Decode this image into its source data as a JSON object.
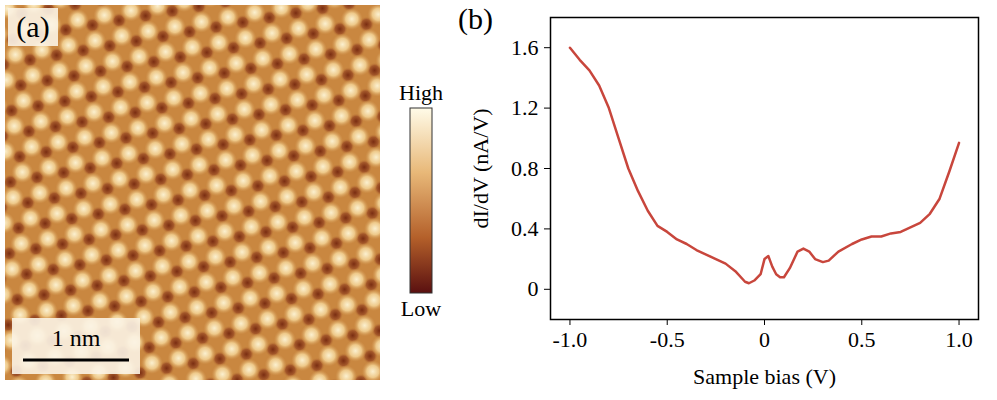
{
  "chart_data": [
    {
      "type": "image",
      "panel": "(a)",
      "scale_bar": "1 nm",
      "colorbar": {
        "labels": [
          "Low",
          "High"
        ]
      }
    },
    {
      "type": "line",
      "panel": "(b)",
      "x_label": "Sample bias (V)",
      "y_label": "dI/dV (nA/V)",
      "x": [
        -1.0,
        -0.95,
        -0.9,
        -0.85,
        -0.8,
        -0.75,
        -0.7,
        -0.65,
        -0.6,
        -0.55,
        -0.5,
        -0.45,
        -0.4,
        -0.35,
        -0.3,
        -0.25,
        -0.2,
        -0.15,
        -0.1,
        -0.08,
        -0.05,
        -0.02,
        0.0,
        0.02,
        0.04,
        0.06,
        0.08,
        0.1,
        0.13,
        0.17,
        0.2,
        0.23,
        0.26,
        0.3,
        0.33,
        0.38,
        0.45,
        0.5,
        0.55,
        0.6,
        0.65,
        0.7,
        0.75,
        0.8,
        0.85,
        0.9,
        0.95,
        1.0
      ],
      "values": [
        1.6,
        1.52,
        1.45,
        1.35,
        1.2,
        1.0,
        0.8,
        0.65,
        0.52,
        0.42,
        0.38,
        0.33,
        0.3,
        0.26,
        0.23,
        0.2,
        0.17,
        0.12,
        0.05,
        0.04,
        0.06,
        0.1,
        0.2,
        0.22,
        0.15,
        0.1,
        0.08,
        0.08,
        0.14,
        0.25,
        0.27,
        0.25,
        0.2,
        0.18,
        0.19,
        0.25,
        0.3,
        0.33,
        0.35,
        0.35,
        0.37,
        0.38,
        0.41,
        0.44,
        0.5,
        0.6,
        0.78,
        0.97
      ],
      "color": "#c8463c",
      "xlim": [
        -1.1,
        1.1
      ],
      "ylim": [
        -0.2,
        1.8
      ],
      "xticks": [
        {
          "value": -1.0,
          "label": "-1.0"
        },
        {
          "value": -0.5,
          "label": "-0.5"
        },
        0,
        0.5,
        {
          "value": 1.0,
          "label": "1.0"
        }
      ],
      "yticks": [
        0,
        0.4,
        0.8,
        1.2,
        1.6
      ]
    }
  ]
}
